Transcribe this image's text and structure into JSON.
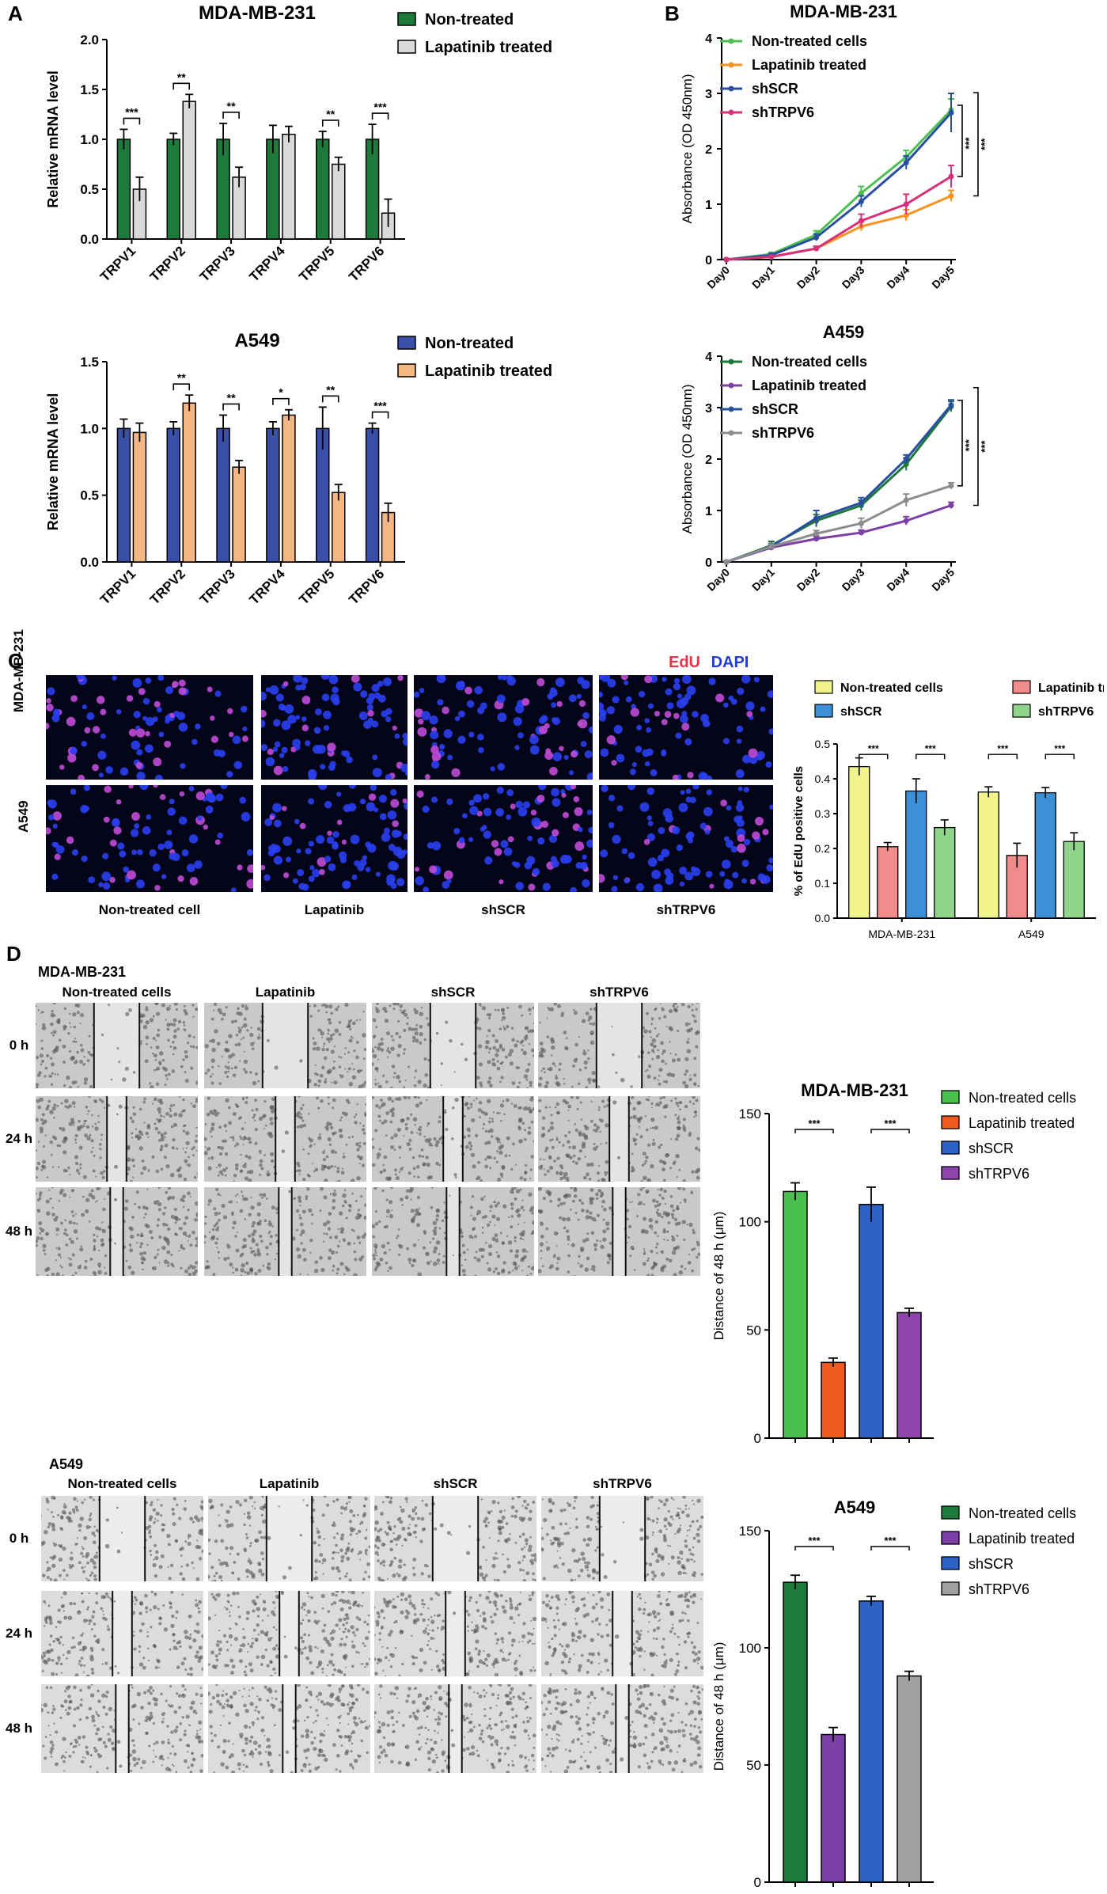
{
  "panels": {
    "A": "A",
    "B": "B",
    "C": "C",
    "D": "D"
  },
  "colors": {
    "green_dark": "#1e7a3a",
    "grey_light": "#d9d9d9",
    "blue": "#3a4fa8",
    "orange_light": "#f4b683",
    "green_light": "#4cc04e",
    "orange": "#f7931e",
    "navy": "#2a4f9e",
    "magenta": "#d6317a",
    "purple": "#7b3fa6",
    "grey": "#8c8c8c",
    "yellow": "#f0f48a",
    "salmon": "#f28b8b",
    "sky": "#3d8fd6",
    "mint": "#8fd48a",
    "orangered": "#f05a1e",
    "violet": "#8e44ad",
    "blue2": "#2d63c4",
    "grey2": "#a0a0a0",
    "edu_red": "#e8344a",
    "dapi_blue": "#1f3fd6"
  },
  "chart_data": [
    {
      "id": "A1",
      "type": "bar",
      "title": "MDA-MB-231",
      "ylabel": "Relative mRNA level",
      "ylim": [
        0,
        2.0
      ],
      "yticks": [
        "0.0",
        "0.5",
        "1.0",
        "1.5",
        "2.0"
      ],
      "categories": [
        "TRPV1",
        "TRPV2",
        "TRPV3",
        "TRPV4",
        "TRPV5",
        "TRPV6"
      ],
      "series": [
        {
          "name": "Non-treated",
          "values": [
            1.0,
            1.0,
            1.0,
            1.0,
            1.0,
            1.0
          ],
          "errors": [
            0.1,
            0.06,
            0.16,
            0.14,
            0.08,
            0.15
          ]
        },
        {
          "name": "Lapatinib treated",
          "values": [
            0.5,
            1.38,
            0.62,
            1.05,
            0.75,
            0.26
          ],
          "errors": [
            0.12,
            0.07,
            0.1,
            0.08,
            0.07,
            0.14
          ]
        }
      ],
      "significance": [
        "***",
        "**",
        "**",
        "",
        "**",
        "***"
      ]
    },
    {
      "id": "A2",
      "type": "bar",
      "title": "A549",
      "ylabel": "Relative mRNA level",
      "ylim": [
        0,
        1.5
      ],
      "yticks": [
        "0.0",
        "0.5",
        "1.0",
        "1.5"
      ],
      "categories": [
        "TRPV1",
        "TRPV2",
        "TRPV3",
        "TRPV4",
        "TRPV5",
        "TRPV6"
      ],
      "series": [
        {
          "name": "Non-treated",
          "values": [
            1.0,
            1.0,
            1.0,
            1.0,
            1.0,
            1.0
          ],
          "errors": [
            0.07,
            0.05,
            0.1,
            0.05,
            0.16,
            0.04
          ]
        },
        {
          "name": "Lapatinib treated",
          "values": [
            0.97,
            1.19,
            0.71,
            1.1,
            0.52,
            0.37
          ],
          "errors": [
            0.07,
            0.06,
            0.05,
            0.04,
            0.06,
            0.07
          ]
        }
      ],
      "significance": [
        "",
        "**",
        "**",
        "*",
        "**",
        "***"
      ]
    },
    {
      "id": "B1",
      "type": "line",
      "title": "MDA-MB-231",
      "ylabel": "Absorbance (OD 450nm)",
      "ylim": [
        0,
        4
      ],
      "yticks": [
        "0",
        "1",
        "2",
        "3",
        "4"
      ],
      "x": [
        "Day0",
        "Day1",
        "Day2",
        "Day3",
        "Day4",
        "Day5"
      ],
      "series": [
        {
          "name": "Non-treated cells",
          "values": [
            0.0,
            0.1,
            0.45,
            1.2,
            1.85,
            2.7
          ],
          "errors": [
            0.02,
            0.03,
            0.07,
            0.12,
            0.12,
            0.2
          ]
        },
        {
          "name": "Lapatinib treated",
          "values": [
            0.0,
            0.05,
            0.2,
            0.6,
            0.8,
            1.15
          ],
          "errors": [
            0.02,
            0.02,
            0.04,
            0.08,
            0.1,
            0.1
          ]
        },
        {
          "name": "shSCR",
          "values": [
            0.0,
            0.08,
            0.4,
            1.05,
            1.75,
            2.65
          ],
          "errors": [
            0.02,
            0.03,
            0.06,
            0.1,
            0.12,
            0.35
          ]
        },
        {
          "name": "shTRPV6",
          "values": [
            0.0,
            0.05,
            0.2,
            0.7,
            1.0,
            1.5
          ],
          "errors": [
            0.02,
            0.02,
            0.04,
            0.12,
            0.18,
            0.2
          ]
        }
      ],
      "significance": [
        "***",
        "***"
      ]
    },
    {
      "id": "B2",
      "type": "line",
      "title": "A459",
      "ylabel": "Absorbance (OD 450nm)",
      "ylim": [
        0,
        4
      ],
      "yticks": [
        "0",
        "1",
        "2",
        "3",
        "4"
      ],
      "x": [
        "Day0",
        "Day1",
        "Day2",
        "Day3",
        "Day4",
        "Day5"
      ],
      "series": [
        {
          "name": "Non-treated cells",
          "values": [
            0.0,
            0.32,
            0.8,
            1.1,
            1.9,
            3.02
          ],
          "errors": [
            0.02,
            0.08,
            0.12,
            0.1,
            0.12,
            0.1
          ]
        },
        {
          "name": "Lapatinib treated",
          "values": [
            0.0,
            0.28,
            0.45,
            0.57,
            0.8,
            1.1
          ],
          "errors": [
            0.02,
            0.05,
            0.05,
            0.05,
            0.08,
            0.06
          ]
        },
        {
          "name": "shSCR",
          "values": [
            0.0,
            0.3,
            0.85,
            1.15,
            2.0,
            3.05
          ],
          "errors": [
            0.02,
            0.06,
            0.15,
            0.1,
            0.08,
            0.1
          ]
        },
        {
          "name": "shTRPV6",
          "values": [
            0.0,
            0.3,
            0.55,
            0.75,
            1.2,
            1.48
          ],
          "errors": [
            0.02,
            0.05,
            0.06,
            0.1,
            0.12,
            0.06
          ]
        }
      ],
      "significance": [
        "***",
        "***"
      ]
    },
    {
      "id": "C",
      "type": "bar",
      "ylabel": "% of EdU positive cells",
      "ylim": [
        0,
        0.5
      ],
      "yticks": [
        "0.0",
        "0.1",
        "0.2",
        "0.3",
        "0.4",
        "0.5"
      ],
      "categories": [
        "MDA-MB-231",
        "A549"
      ],
      "series": [
        {
          "name": "Non-treated cells",
          "values": [
            0.435,
            0.362
          ],
          "errors": [
            0.025,
            0.015
          ]
        },
        {
          "name": "Lapatinib treated",
          "values": [
            0.205,
            0.18
          ],
          "errors": [
            0.012,
            0.035
          ]
        },
        {
          "name": "shSCR",
          "values": [
            0.365,
            0.36
          ],
          "errors": [
            0.035,
            0.015
          ]
        },
        {
          "name": "shTRPV6",
          "values": [
            0.26,
            0.22
          ],
          "errors": [
            0.022,
            0.025
          ]
        }
      ],
      "significance": [
        "***",
        "***",
        "***",
        "***"
      ]
    },
    {
      "id": "D1",
      "type": "bar",
      "title": "MDA-MB-231",
      "ylabel": "Distance of 48 h (μm)",
      "ylim": [
        0,
        150
      ],
      "yticks": [
        "0",
        "50",
        "100",
        "150"
      ],
      "categories": [
        "Non-treated cells",
        "Lapatinib treated",
        "shSCR",
        "shTRPV6"
      ],
      "values": [
        114,
        35,
        108,
        58
      ],
      "errors": [
        4,
        2,
        8,
        2
      ],
      "series_names": [
        "Non-treated cells",
        "Lapatinib treated",
        "shSCR",
        "shTRPV6"
      ],
      "significance": [
        "***",
        "***"
      ]
    },
    {
      "id": "D2",
      "type": "bar",
      "title": "A549",
      "ylabel": "Distance of 48 h (μm)",
      "ylim": [
        0,
        150
      ],
      "yticks": [
        "0",
        "50",
        "100",
        "150"
      ],
      "categories": [
        "Non-treated cells",
        "Lapatinib treated",
        "shSCR",
        "shTRPV6"
      ],
      "values": [
        128,
        63,
        120,
        88
      ],
      "errors": [
        3,
        3,
        2,
        2
      ],
      "series_names": [
        "Non-treated cells",
        "Lapatinib treated",
        "shSCR",
        "shTRPV6"
      ],
      "significance": [
        "***",
        "***"
      ]
    }
  ],
  "panelC": {
    "stain_edu": "EdU",
    "stain_dapi": "DAPI",
    "rows": [
      "MDA-MB-231",
      "A549"
    ],
    "cols": [
      "Non-treated cell",
      "Lapatinib",
      "shSCR",
      "shTRPV6"
    ]
  },
  "panelD": {
    "group1": "MDA-MB-231",
    "group2": "A549",
    "cols": [
      "Non-treated cells",
      "Lapatinib",
      "shSCR",
      "shTRPV6"
    ],
    "rows": [
      "0 h",
      "24 h",
      "48 h"
    ]
  }
}
